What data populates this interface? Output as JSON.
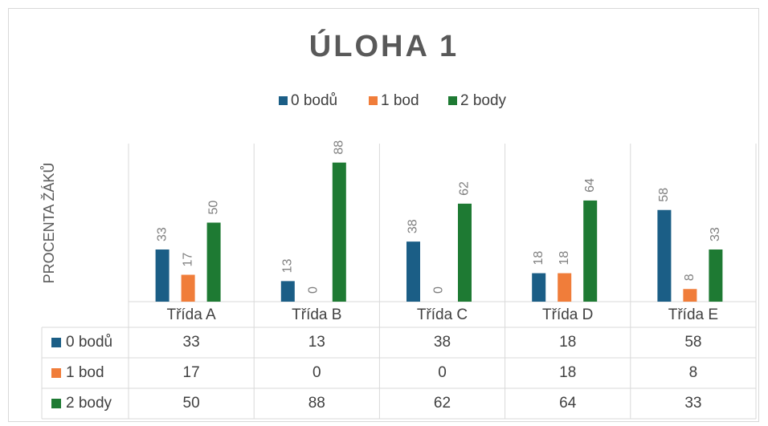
{
  "chart_data": {
    "type": "bar",
    "title": "ÚLOHA 1",
    "y_label": "PROCENTA ŽÁKŮ",
    "categories": [
      "Třída A",
      "Třída B",
      "Třída C",
      "Třída D",
      "Třída E"
    ],
    "series": [
      {
        "name": "0 bodů",
        "color": "#1b5e86",
        "values": [
          33,
          13,
          38,
          18,
          58
        ]
      },
      {
        "name": "1 bod",
        "color": "#f07d3a",
        "values": [
          17,
          0,
          0,
          18,
          8
        ]
      },
      {
        "name": "2 body",
        "color": "#1e7a33",
        "values": [
          50,
          88,
          62,
          64,
          33
        ]
      }
    ],
    "ylim": [
      0,
      100
    ],
    "legend": "top",
    "data_table": true
  }
}
